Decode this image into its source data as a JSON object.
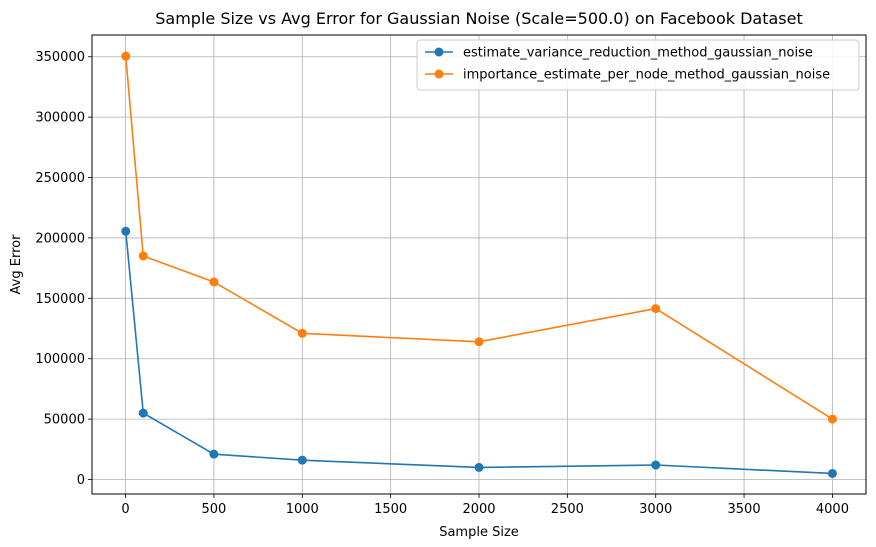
{
  "chart_data": {
    "type": "line",
    "title": "Sample Size vs Avg Error for Gaussian Noise (Scale=500.0) on Facebook Dataset",
    "xlabel": "Sample Size",
    "ylabel": "Avg Error",
    "xlim": [
      -190,
      4190
    ],
    "ylim": [
      -12000,
      368000
    ],
    "x_ticks": [
      0,
      500,
      1000,
      1500,
      2000,
      2500,
      3000,
      3500,
      4000
    ],
    "x_tick_labels": [
      "0",
      "500",
      "1000",
      "1500",
      "2000",
      "2500",
      "3000",
      "3500",
      "4000"
    ],
    "y_ticks": [
      0,
      50000,
      100000,
      150000,
      200000,
      250000,
      300000,
      350000
    ],
    "y_tick_labels": [
      "0",
      "50000",
      "100000",
      "150000",
      "200000",
      "250000",
      "300000",
      "350000"
    ],
    "grid": true,
    "legend_position": "top-right",
    "series": [
      {
        "name": "estimate_variance_reduction_method_gaussian_noise",
        "color": "#1f77b4",
        "marker": "circle",
        "x": [
          1,
          100,
          500,
          1000,
          2000,
          3000,
          4000
        ],
        "y": [
          205500,
          55000,
          21000,
          16000,
          10000,
          12000,
          5000
        ]
      },
      {
        "name": "importance_estimate_per_node_method_gaussian_noise",
        "color": "#ff7f0e",
        "marker": "circle",
        "x": [
          1,
          100,
          500,
          1000,
          2000,
          3000,
          4000
        ],
        "y": [
          350500,
          185000,
          163500,
          121000,
          114000,
          141500,
          50000
        ]
      }
    ]
  }
}
